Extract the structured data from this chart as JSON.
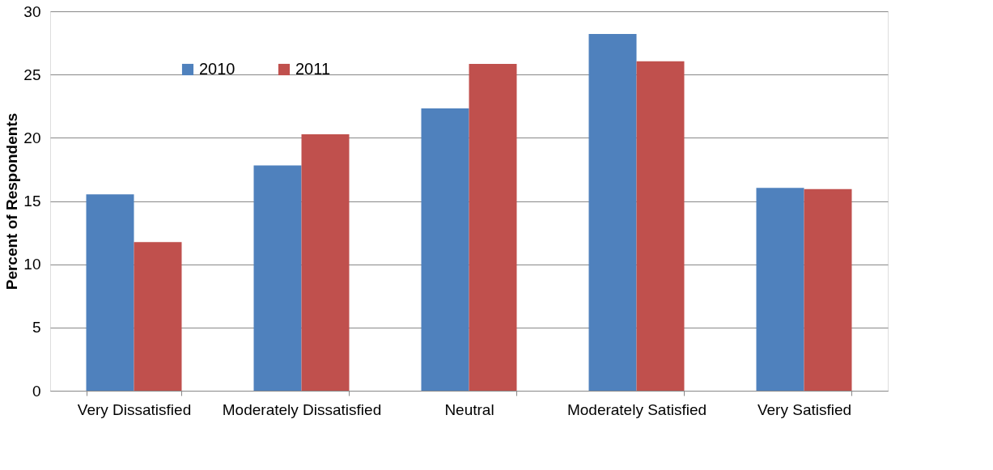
{
  "chart_data": {
    "type": "bar",
    "ylabel": "Percent of Respondents",
    "categories": [
      "Very Dissatisfied",
      "Moderately Dissatisfied",
      "Neutral",
      "Moderately Satisfied",
      "Very Satisfied"
    ],
    "series": [
      {
        "name": "2010",
        "color": "#4f81bd",
        "values": [
          15.53,
          17.81,
          22.32,
          28.21,
          16.04
        ]
      },
      {
        "name": "2011",
        "color": "#c0504d",
        "values": [
          11.75,
          20.28,
          25.85,
          26.05,
          15.94
        ]
      }
    ],
    "ylim": [
      0,
      30
    ],
    "yticks": [
      0,
      5,
      10,
      15,
      20,
      25,
      30
    ],
    "grid": "y",
    "legend": "top left"
  }
}
